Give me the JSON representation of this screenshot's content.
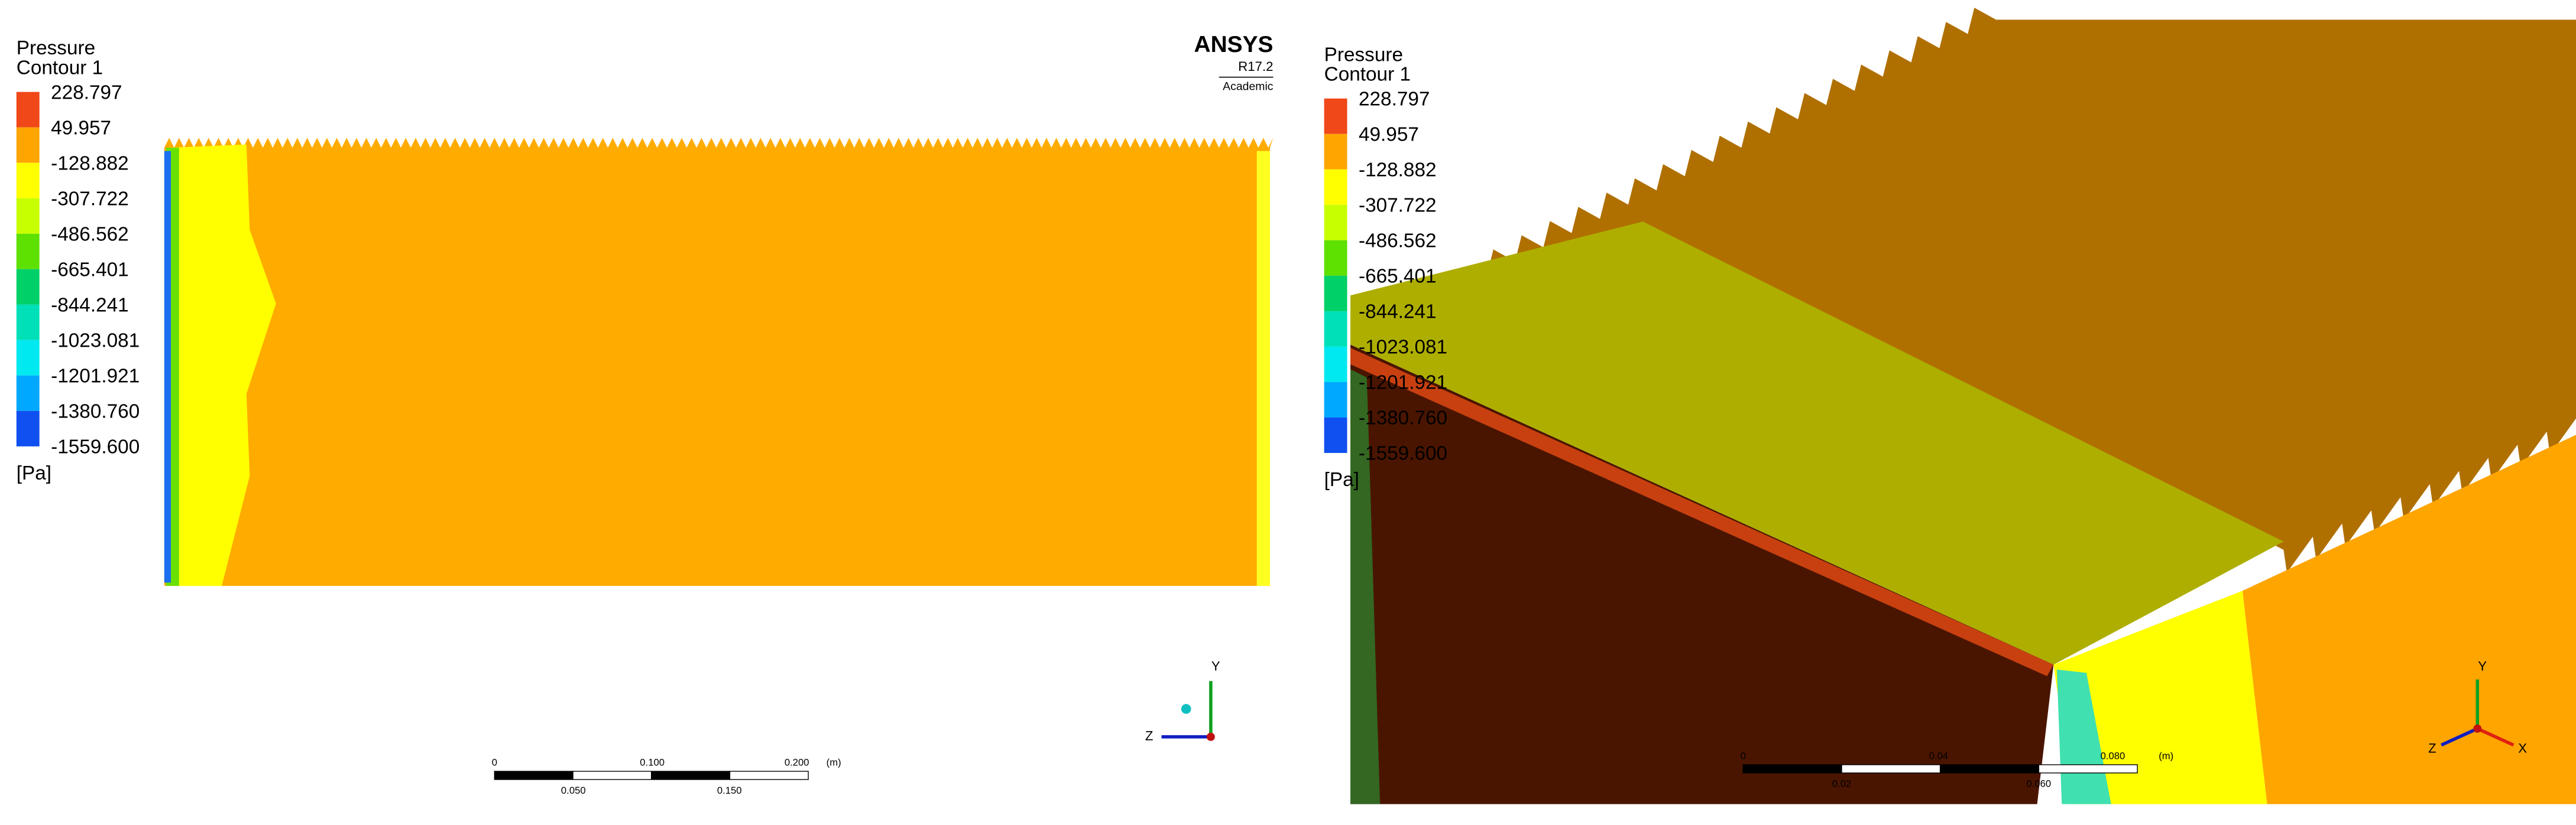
{
  "logo": {
    "name": "ANSYS",
    "version": "R17.2",
    "license": "Academic"
  },
  "panels": [
    {
      "legend": {
        "title": "Pressure",
        "subtitle": "Contour 1",
        "levels": [
          "228.797",
          "49.957",
          "-128.882",
          "-307.722",
          "-486.562",
          "-665.401",
          "-844.241",
          "-1023.081",
          "-1201.921",
          "-1380.760",
          "-1559.600"
        ],
        "unit": "[Pa]"
      },
      "scale_bar": {
        "top_labels": [
          "0",
          "0.100",
          "0.200",
          "(m)"
        ],
        "bottom_labels": [
          "0.050",
          "0.150"
        ]
      },
      "axes": [
        "Y",
        "Z"
      ]
    },
    {
      "legend": {
        "title": "Pressure",
        "subtitle": "Contour 1",
        "levels": [
          "228.797",
          "49.957",
          "-128.882",
          "-307.722",
          "-486.562",
          "-665.401",
          "-844.241",
          "-1023.081",
          "-1201.921",
          "-1380.760",
          "-1559.600"
        ],
        "unit": "[Pa]"
      },
      "scale_bar": {
        "top_labels": [
          "0",
          "0.04",
          "0.080",
          "(m)"
        ],
        "bottom_labels": [
          "0.02",
          "0.060"
        ]
      },
      "axes": [
        "Y",
        "Z",
        "X"
      ]
    }
  ]
}
